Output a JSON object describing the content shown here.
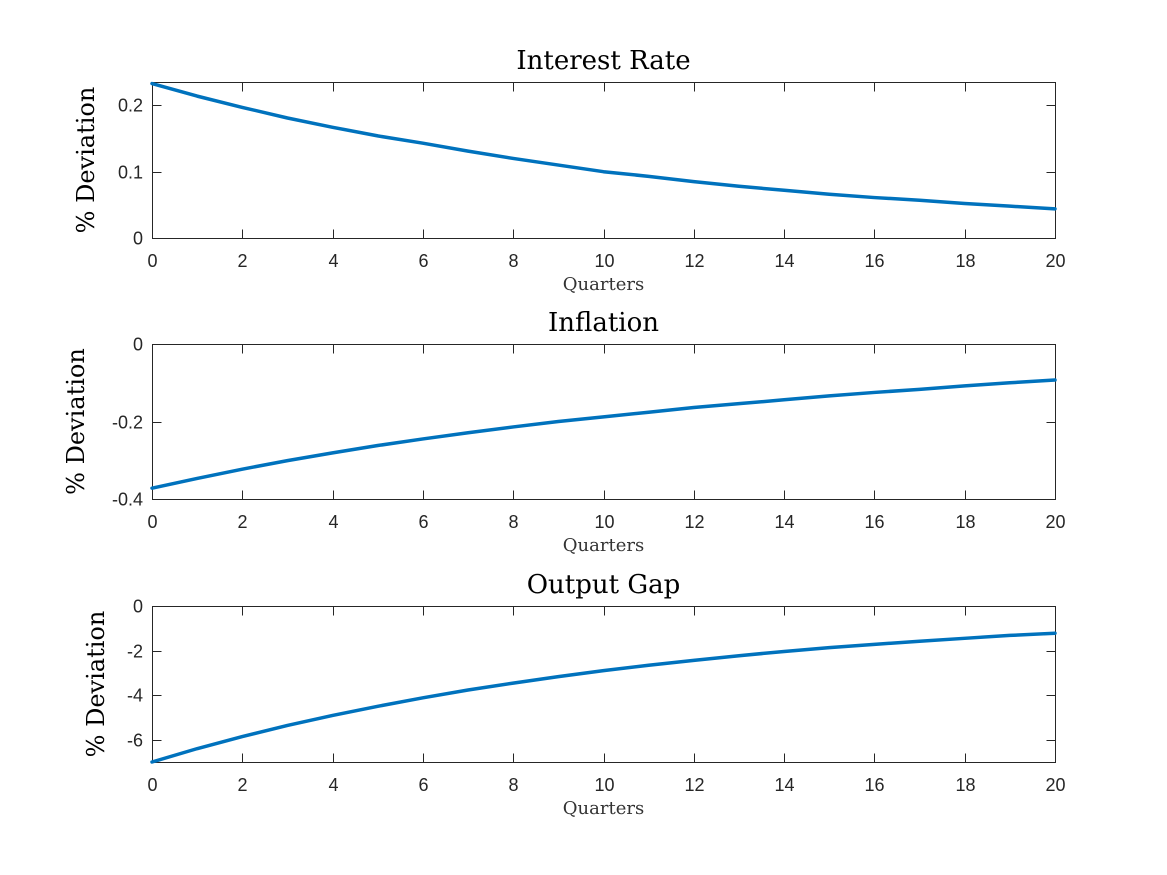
{
  "chart_data": [
    {
      "type": "line",
      "title": "Interest Rate",
      "xlabel": "Quarters",
      "ylabel": "% Deviation",
      "xlim": [
        0,
        20
      ],
      "ylim": [
        0,
        0.2353
      ],
      "xticks": [
        0,
        2,
        4,
        6,
        8,
        10,
        12,
        14,
        16,
        18,
        20
      ],
      "xtick_labels": [
        "0",
        "2",
        "4",
        "6",
        "8",
        "10",
        "12",
        "14",
        "16",
        "18",
        "20"
      ],
      "yticks": [
        0,
        0.1,
        0.2
      ],
      "ytick_labels": [
        "0",
        "0.1",
        "0.2"
      ],
      "grid": false,
      "series": [
        {
          "color": "#0072bd",
          "x": [
            0,
            1,
            2,
            3,
            4,
            5,
            6,
            7,
            8,
            9,
            10,
            11,
            12,
            13,
            14,
            15,
            16,
            17,
            18,
            19,
            20
          ],
          "y": [
            0.233,
            0.214,
            0.197,
            0.181,
            0.167,
            0.154,
            0.143,
            0.131,
            0.12,
            0.11,
            0.1,
            0.093,
            0.085,
            0.078,
            0.072,
            0.066,
            0.061,
            0.057,
            0.052,
            0.048,
            0.044
          ]
        }
      ]
    },
    {
      "type": "line",
      "title": "Inflation",
      "xlabel": "Quarters",
      "ylabel": "% Deviation",
      "xlim": [
        0,
        20
      ],
      "ylim": [
        -0.4,
        0
      ],
      "xticks": [
        0,
        2,
        4,
        6,
        8,
        10,
        12,
        14,
        16,
        18,
        20
      ],
      "xtick_labels": [
        "0",
        "2",
        "4",
        "6",
        "8",
        "10",
        "12",
        "14",
        "16",
        "18",
        "20"
      ],
      "yticks": [
        -0.4,
        -0.2,
        0
      ],
      "ytick_labels": [
        "-0.4",
        "-0.2",
        "0"
      ],
      "grid": false,
      "series": [
        {
          "color": "#0072bd",
          "x": [
            0,
            1,
            2,
            3,
            4,
            5,
            6,
            7,
            8,
            9,
            10,
            11,
            12,
            13,
            14,
            15,
            16,
            17,
            18,
            19,
            20
          ],
          "y": [
            -0.372,
            -0.347,
            -0.323,
            -0.301,
            -0.281,
            -0.262,
            -0.245,
            -0.229,
            -0.214,
            -0.2,
            -0.188,
            -0.176,
            -0.164,
            -0.154,
            -0.144,
            -0.134,
            -0.125,
            -0.117,
            -0.108,
            -0.1,
            -0.093
          ]
        }
      ]
    },
    {
      "type": "line",
      "title": "Output Gap",
      "xlabel": "Quarters",
      "ylabel": "% Deviation",
      "xlim": [
        0,
        20
      ],
      "ylim": [
        -7,
        0
      ],
      "xticks": [
        0,
        2,
        4,
        6,
        8,
        10,
        12,
        14,
        16,
        18,
        20
      ],
      "xtick_labels": [
        "0",
        "2",
        "4",
        "6",
        "8",
        "10",
        "12",
        "14",
        "16",
        "18",
        "20"
      ],
      "yticks": [
        -6,
        -4,
        -2,
        0
      ],
      "ytick_labels": [
        "-6",
        "-4",
        "-2",
        "0"
      ],
      "grid": false,
      "series": [
        {
          "color": "#0072bd",
          "x": [
            0,
            1,
            2,
            3,
            4,
            5,
            6,
            7,
            8,
            9,
            10,
            11,
            12,
            13,
            14,
            15,
            16,
            17,
            18,
            19,
            20
          ],
          "y": [
            -7.0,
            -6.4,
            -5.86,
            -5.36,
            -4.91,
            -4.5,
            -4.12,
            -3.77,
            -3.46,
            -3.17,
            -2.9,
            -2.66,
            -2.44,
            -2.23,
            -2.04,
            -1.87,
            -1.72,
            -1.58,
            -1.45,
            -1.32,
            -1.22
          ]
        }
      ]
    }
  ]
}
